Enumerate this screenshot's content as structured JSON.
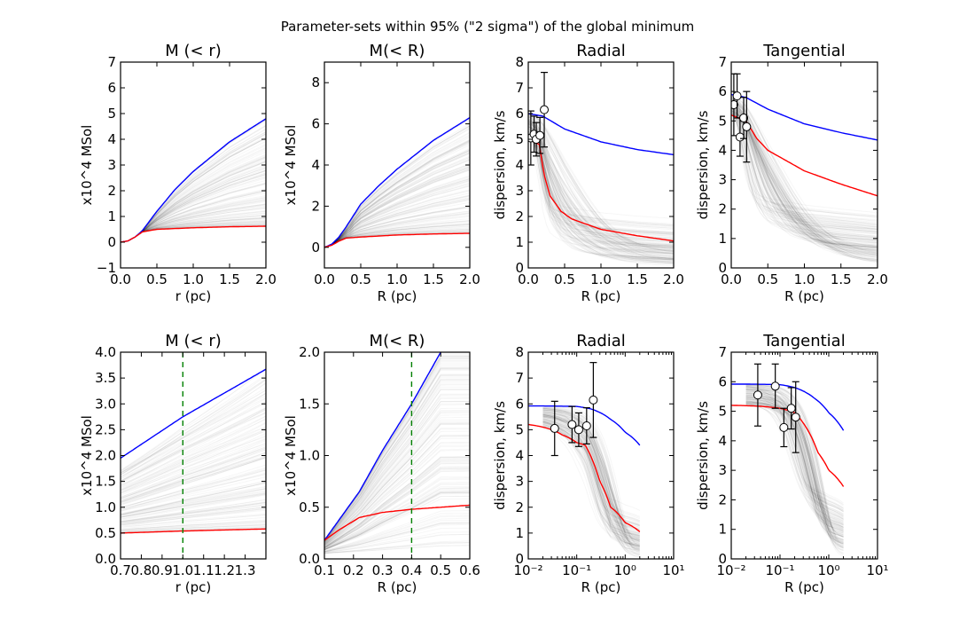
{
  "suptitle": "Parameter-sets within 95% (\"2 sigma\") of the global minimum",
  "chart_data": [
    {
      "type": "line",
      "title": "M (< r)",
      "xlabel": "r (pc)",
      "ylabel": "x10^4 MSol",
      "xscale": "linear",
      "xlim": [
        0,
        2
      ],
      "ylim": [
        -1,
        7
      ],
      "xticks": [
        0,
        0.5,
        1,
        1.5,
        2
      ],
      "xticklabels": [
        "0.0",
        "0.5",
        "1.0",
        "1.5",
        "2.0"
      ],
      "yticks": [
        -1,
        0,
        1,
        2,
        3,
        4,
        5,
        6,
        7
      ],
      "yticklabels": [
        "−1",
        "0",
        "1",
        "2",
        "3",
        "4",
        "5",
        "6",
        "7"
      ],
      "kind": "mass",
      "blue": {
        "x": [
          0,
          0.1,
          0.2,
          0.3,
          0.5,
          0.75,
          1,
          1.5,
          2
        ],
        "y": [
          0,
          0.05,
          0.2,
          0.45,
          1.2,
          2.05,
          2.75,
          3.9,
          4.8
        ]
      },
      "red": {
        "x": [
          0,
          0.1,
          0.2,
          0.3,
          0.5,
          1,
          1.5,
          2
        ],
        "y": [
          0,
          0.05,
          0.2,
          0.4,
          0.5,
          0.56,
          0.6,
          0.62
        ]
      }
    },
    {
      "type": "line",
      "title": "M(< R)",
      "xlabel": "R (pc)",
      "ylabel": "x10^4 MSol",
      "xscale": "linear",
      "xlim": [
        0,
        2
      ],
      "ylim": [
        -1,
        9
      ],
      "xticks": [
        0,
        0.5,
        1,
        1.5,
        2
      ],
      "xticklabels": [
        "0.0",
        "0.5",
        "1.0",
        "1.5",
        "2.0"
      ],
      "yticks": [
        0,
        2,
        4,
        6,
        8
      ],
      "yticklabels": [
        "0",
        "2",
        "4",
        "6",
        "8"
      ],
      "kind": "mass",
      "blue": {
        "x": [
          0,
          0.1,
          0.2,
          0.3,
          0.5,
          0.75,
          1,
          1.5,
          2
        ],
        "y": [
          0,
          0.15,
          0.5,
          1.0,
          2.1,
          3.0,
          3.8,
          5.2,
          6.3
        ]
      },
      "red": {
        "x": [
          0,
          0.1,
          0.2,
          0.3,
          0.5,
          1,
          1.5,
          2
        ],
        "y": [
          0,
          0.1,
          0.3,
          0.45,
          0.5,
          0.6,
          0.65,
          0.68
        ]
      }
    },
    {
      "type": "line",
      "title": "Radial",
      "xlabel": "R (pc)",
      "ylabel": "dispersion, km/s",
      "xscale": "linear",
      "xlim": [
        0,
        2
      ],
      "ylim": [
        0,
        8
      ],
      "xticks": [
        0,
        0.5,
        1,
        1.5,
        2
      ],
      "xticklabels": [
        "0.0",
        "0.5",
        "1.0",
        "1.5",
        "2.0"
      ],
      "yticks": [
        0,
        1,
        2,
        3,
        4,
        5,
        6,
        7,
        8
      ],
      "yticklabels": [
        "0",
        "1",
        "2",
        "3",
        "4",
        "5",
        "6",
        "7",
        "8"
      ],
      "kind": "disp",
      "blue": {
        "x": [
          0,
          0.2,
          0.5,
          1,
          1.5,
          2
        ],
        "y": [
          6,
          5.9,
          5.4,
          4.9,
          4.6,
          4.4
        ]
      },
      "red": {
        "x": [
          0,
          0.15,
          0.22,
          0.3,
          0.45,
          0.6,
          1,
          1.5,
          2
        ],
        "y": [
          5,
          4.8,
          3.6,
          2.8,
          2.2,
          1.9,
          1.5,
          1.25,
          1.05
        ]
      },
      "points": {
        "x": [
          0.035,
          0.08,
          0.11,
          0.16,
          0.22
        ],
        "y": [
          5.05,
          5.2,
          5.0,
          5.15,
          6.15
        ],
        "err": [
          1.05,
          0.7,
          0.65,
          0.7,
          1.45
        ]
      }
    },
    {
      "type": "line",
      "title": "Tangential",
      "xlabel": "R (pc)",
      "ylabel": "dispersion, km/s",
      "xscale": "linear",
      "xlim": [
        0,
        2
      ],
      "ylim": [
        0,
        7
      ],
      "xticks": [
        0,
        0.5,
        1,
        1.5,
        2
      ],
      "xticklabels": [
        "0.0",
        "0.5",
        "1.0",
        "1.5",
        "2.0"
      ],
      "yticks": [
        0,
        1,
        2,
        3,
        4,
        5,
        6,
        7
      ],
      "yticklabels": [
        "0",
        "1",
        "2",
        "3",
        "4",
        "5",
        "6",
        "7"
      ],
      "kind": "disp",
      "blue": {
        "x": [
          0,
          0.2,
          0.5,
          1,
          1.5,
          2
        ],
        "y": [
          5.9,
          5.8,
          5.4,
          4.9,
          4.6,
          4.35
        ]
      },
      "red": {
        "x": [
          0,
          0.2,
          0.35,
          0.5,
          1,
          1.5,
          2
        ],
        "y": [
          5.2,
          5.0,
          4.4,
          4.0,
          3.3,
          2.85,
          2.45
        ]
      },
      "points": {
        "x": [
          0.035,
          0.08,
          0.12,
          0.17,
          0.21
        ],
        "y": [
          5.55,
          5.85,
          4.45,
          5.1,
          4.8
        ],
        "err": [
          1.05,
          0.75,
          0.65,
          0.7,
          1.2
        ]
      }
    },
    {
      "type": "line",
      "title": "M (< r)",
      "xlabel": "r (pc)",
      "ylabel": "x10^4 MSol",
      "xscale": "linear",
      "xlim": [
        0.7,
        1.4
      ],
      "ylim": [
        0,
        4
      ],
      "xticks": [
        0.7,
        0.8,
        0.9,
        1.0,
        1.1,
        1.2,
        1.3
      ],
      "xticklabels": [
        "0.7",
        "0.8",
        "0.9",
        "1.0",
        "1.1",
        "1.2",
        "1.3"
      ],
      "yticks": [
        0,
        0.5,
        1,
        1.5,
        2,
        2.5,
        3,
        3.5,
        4
      ],
      "yticklabels": [
        "0.0",
        "0.5",
        "1.0",
        "1.5",
        "2.0",
        "2.5",
        "3.0",
        "3.5",
        "4.0"
      ],
      "kind": "massz",
      "vline": 1.0,
      "blue": {
        "x": [
          0.7,
          1.0,
          1.4
        ],
        "y": [
          1.95,
          2.75,
          3.67
        ]
      },
      "red": {
        "x": [
          0.7,
          1.0,
          1.4
        ],
        "y": [
          0.5,
          0.54,
          0.58
        ]
      }
    },
    {
      "type": "line",
      "title": "M(< R)",
      "xlabel": "R (pc)",
      "ylabel": "x10^4 MSol",
      "xscale": "linear",
      "xlim": [
        0.1,
        0.6
      ],
      "ylim": [
        0,
        2
      ],
      "xticks": [
        0.1,
        0.2,
        0.3,
        0.4,
        0.5,
        0.6
      ],
      "xticklabels": [
        "0.1",
        "0.2",
        "0.3",
        "0.4",
        "0.5",
        "0.6"
      ],
      "yticks": [
        0,
        0.5,
        1,
        1.5,
        2
      ],
      "yticklabels": [
        "0.0",
        "0.5",
        "1.0",
        "1.5",
        "2.0"
      ],
      "kind": "massz2",
      "vline": 0.4,
      "blue": {
        "x": [
          0.1,
          0.22,
          0.3,
          0.4,
          0.5
        ],
        "y": [
          0.18,
          0.65,
          1.05,
          1.5,
          2.0
        ]
      },
      "red": {
        "x": [
          0.1,
          0.15,
          0.22,
          0.3,
          0.4,
          0.6
        ],
        "y": [
          0.18,
          0.28,
          0.4,
          0.45,
          0.48,
          0.52
        ]
      }
    },
    {
      "type": "line",
      "title": "Radial",
      "xlabel": "R (pc)",
      "ylabel": "dispersion, km/s",
      "xscale": "log",
      "xlim": [
        0.01,
        10
      ],
      "ylim": [
        0,
        8
      ],
      "xticks": [
        0.01,
        0.1,
        1,
        10
      ],
      "xticklabels": [
        "10⁻²",
        "10⁻¹",
        "10⁰",
        "10¹"
      ],
      "yticks": [
        0,
        1,
        2,
        3,
        4,
        5,
        6,
        7,
        8
      ],
      "yticklabels": [
        "0",
        "1",
        "2",
        "3",
        "4",
        "5",
        "6",
        "7",
        "8"
      ],
      "kind": "displog",
      "blue": {
        "x": [
          0.01,
          0.1,
          0.2,
          0.5,
          1,
          2
        ],
        "y": [
          5.92,
          5.9,
          5.8,
          5.4,
          4.9,
          4.4
        ]
      },
      "red": {
        "x": [
          0.01,
          0.05,
          0.1,
          0.15,
          0.3,
          0.5,
          1,
          2
        ],
        "y": [
          5.2,
          4.8,
          4.5,
          4.4,
          3.0,
          2.0,
          1.4,
          1.05
        ]
      },
      "points": {
        "x": [
          0.035,
          0.08,
          0.11,
          0.16,
          0.22
        ],
        "y": [
          5.05,
          5.2,
          5.0,
          5.15,
          6.15
        ],
        "err": [
          1.05,
          0.7,
          0.65,
          0.7,
          1.45
        ]
      }
    },
    {
      "type": "line",
      "title": "Tangential",
      "xlabel": "R (pc)",
      "ylabel": "dispersion, km/s",
      "xscale": "log",
      "xlim": [
        0.01,
        10
      ],
      "ylim": [
        0,
        7
      ],
      "xticks": [
        0.01,
        0.1,
        1,
        10
      ],
      "xticklabels": [
        "10⁻²",
        "10⁻¹",
        "10⁰",
        "10¹"
      ],
      "yticks": [
        0,
        1,
        2,
        3,
        4,
        5,
        6,
        7
      ],
      "yticklabels": [
        "0",
        "1",
        "2",
        "3",
        "4",
        "5",
        "6",
        "7"
      ],
      "kind": "displog",
      "blue": {
        "x": [
          0.01,
          0.1,
          0.2,
          0.5,
          1,
          2
        ],
        "y": [
          5.92,
          5.9,
          5.8,
          5.45,
          4.95,
          4.35
        ]
      },
      "red": {
        "x": [
          0.01,
          0.1,
          0.2,
          0.3,
          0.6,
          1,
          2
        ],
        "y": [
          5.2,
          5.1,
          4.95,
          4.6,
          3.6,
          3.0,
          2.45
        ]
      },
      "points": {
        "x": [
          0.035,
          0.08,
          0.12,
          0.17,
          0.21
        ],
        "y": [
          5.55,
          5.85,
          4.45,
          5.1,
          4.8
        ],
        "err": [
          1.05,
          0.75,
          0.65,
          0.7,
          1.2
        ]
      }
    }
  ]
}
